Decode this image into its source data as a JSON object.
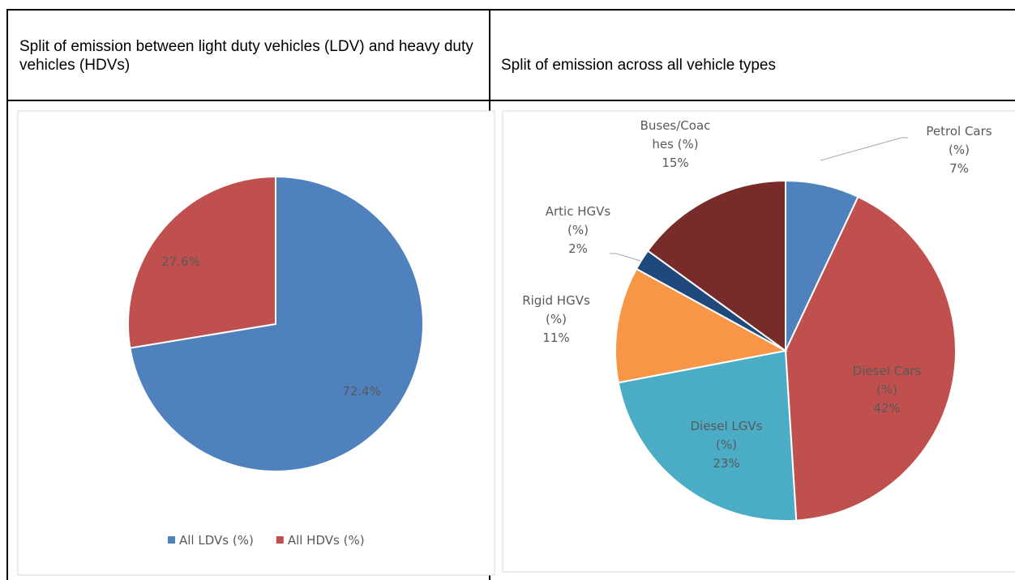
{
  "table": {
    "headers": [
      "Split of emission between light duty vehicles (LDV) and heavy duty vehicles (HDVs)",
      "Split of emission across all vehicle types"
    ]
  },
  "chart_data": [
    {
      "type": "pie",
      "categories": [
        "All LDVs (%)",
        "All HDVs (%)"
      ],
      "values": [
        72.4,
        27.6
      ],
      "value_labels": [
        "72.4%",
        "27.6%"
      ],
      "colors": [
        "#4f81bd",
        "#c0504d"
      ],
      "legend": "bottom"
    },
    {
      "type": "pie",
      "categories": [
        "Petrol Cars (%)",
        "Diesel Cars (%)",
        "Diesel LGVs (%)",
        "Rigid HGVs (%)",
        "Artic HGVs (%)",
        "Buses/Coaches (%)"
      ],
      "values": [
        7,
        42,
        23,
        11,
        2,
        15
      ],
      "value_labels": [
        "7%",
        "42%",
        "23%",
        "11%",
        "2%",
        "15%"
      ],
      "colors": [
        "#4f81bd",
        "#c0504d",
        "#4bacc6",
        "#f79646",
        "#1f497d",
        "#772c2a"
      ]
    }
  ]
}
